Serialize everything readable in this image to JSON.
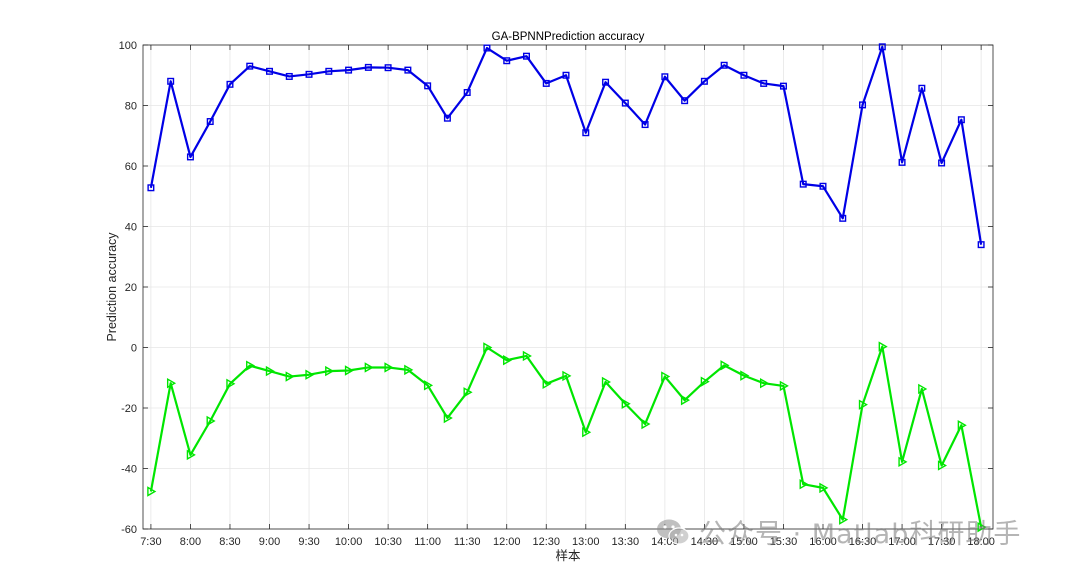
{
  "chart_data": {
    "type": "line",
    "title": "GA-BPNNPrediction accuracy",
    "xlabel": "样本",
    "ylabel": "Prediction accuracy",
    "ylim": [
      -60,
      100
    ],
    "yticks": [
      -60,
      -40,
      -20,
      0,
      20,
      40,
      60,
      80,
      100
    ],
    "grid": true,
    "legend": "none",
    "x": [
      1,
      2,
      3,
      4,
      5,
      6,
      7,
      8,
      9,
      10,
      11,
      12,
      13,
      14,
      15,
      16,
      17,
      18,
      19,
      20,
      21,
      22,
      23,
      24,
      25,
      26,
      27,
      28,
      29,
      30,
      31,
      32,
      33,
      34,
      35,
      36,
      37,
      38,
      39,
      40,
      41,
      42,
      43
    ],
    "xlim": [
      0.6,
      43.6
    ],
    "xticks": [
      1,
      3,
      5,
      7,
      9,
      11,
      13,
      15,
      17,
      19,
      21,
      23,
      25,
      27,
      29,
      31,
      33,
      35,
      37,
      39,
      41,
      43
    ],
    "xticklabels": [
      "7:30",
      "8:00",
      "8:30",
      "9:00",
      "9:30",
      "10:00",
      "10:30",
      "11:00",
      "11:30",
      "12:00",
      "12:30",
      "13:00",
      "13:30",
      "14:00",
      "14:30",
      "15:00",
      "15:30",
      "16:00",
      "16:30",
      "17:00",
      "17:30",
      "18:00"
    ],
    "series": [
      {
        "color": "#0000E6",
        "marker": "square",
        "values": [
          52.8,
          88,
          63,
          74.7,
          87,
          93,
          91.3,
          89.6,
          90.3,
          91.3,
          91.7,
          92.6,
          92.5,
          91.7,
          86.5,
          75.8,
          84.3,
          99,
          94.8,
          96.3,
          87.3,
          90,
          71,
          87.7,
          80.8,
          73.7,
          89.5,
          81.6,
          88,
          93.3,
          90,
          87.3,
          86.4,
          54,
          53.3,
          42.7,
          80.2,
          99.4,
          61.2,
          85.7,
          61,
          75.3,
          34
        ]
      },
      {
        "color": "#00E600",
        "marker": "triangle-right",
        "values": [
          -47.6,
          -11.8,
          -35.5,
          -24.3,
          -12,
          -6,
          -7.8,
          -9.6,
          -9,
          -7.8,
          -7.6,
          -6.6,
          -6.6,
          -7.4,
          -12.5,
          -23.3,
          -14.8,
          0,
          -4.2,
          -2.8,
          -12,
          -9.4,
          -28,
          -11.4,
          -18.6,
          -25.3,
          -9.6,
          -17.4,
          -11.3,
          -5.9,
          -9.3,
          -11.8,
          -12.7,
          -45.2,
          -46.4,
          -56.9,
          -18.9,
          0.3,
          -37.8,
          -13.7,
          -39,
          -25.7,
          -59.4
        ]
      }
    ]
  },
  "watermark": {
    "text": "公众号 · Matlab科研助手",
    "icon": "wechat-icon"
  }
}
